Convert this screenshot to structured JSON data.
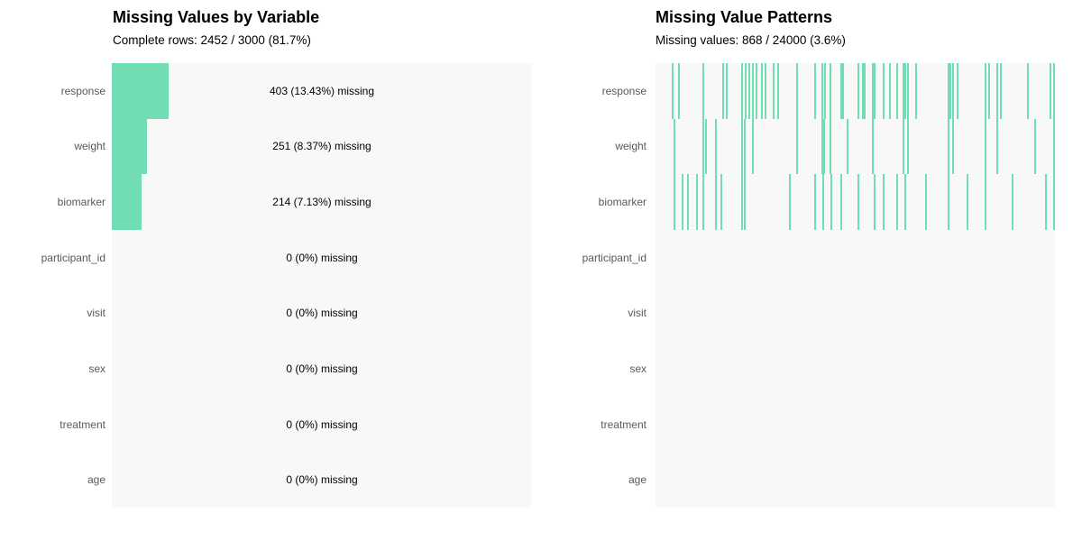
{
  "colors": {
    "accent": "#72dcb3",
    "panel_bg": "#f8f8f8",
    "label_text": "#595959",
    "title_text": "#000000"
  },
  "chart_data": [
    {
      "type": "bar",
      "orientation": "horizontal",
      "title": "Missing Values by Variable",
      "subtitle": "Complete rows: 2452 / 3000 (81.7%)",
      "complete_rows": 2452,
      "total_rows": 3000,
      "complete_pct": "81.7%",
      "xlim": [
        0,
        3000
      ],
      "grid": false,
      "categories": [
        "response",
        "weight",
        "biomarker",
        "participant_id",
        "visit",
        "sex",
        "treatment",
        "age"
      ],
      "values": [
        403,
        251,
        214,
        0,
        0,
        0,
        0,
        0
      ],
      "value_labels": [
        "403 (13.43%) missing",
        "251 (8.37%) missing",
        "214 (7.13%) missing",
        "0 (0%) missing",
        "0 (0%) missing",
        "0 (0%) missing",
        "0 (0%) missing",
        "0 (0%) missing"
      ]
    },
    {
      "type": "heatmap",
      "title": "Missing Value Patterns",
      "subtitle": "Missing values: 868 / 24000 (3.6%)",
      "missing_values": 868,
      "total_values": 24000,
      "missing_pct": "3.6%",
      "categories": [
        "response",
        "weight",
        "biomarker",
        "participant_id",
        "visit",
        "sex",
        "treatment",
        "age"
      ],
      "tick_positions": {
        "response": [
          0.043,
          0.059,
          0.12,
          0.169,
          0.178,
          0.217,
          0.226,
          0.235,
          0.244,
          0.253,
          0.266,
          0.275,
          0.296,
          0.307,
          0.354,
          0.4,
          0.418,
          0.424,
          0.438,
          0.465,
          0.47,
          0.508,
          0.519,
          0.524,
          0.544,
          0.549,
          0.571,
          0.587,
          0.605,
          0.621,
          0.625,
          0.632,
          0.652,
          0.734,
          0.738,
          0.745,
          0.756,
          0.826,
          0.835,
          0.856,
          0.864,
          0.932,
          0.989,
          0.998
        ],
        "weight": [
          0.047,
          0.12,
          0.126,
          0.151,
          0.217,
          0.224,
          0.244,
          0.354,
          0.418,
          0.422,
          0.438,
          0.481,
          0.544,
          0.621,
          0.632,
          0.734,
          0.745,
          0.826,
          0.856,
          0.95,
          0.998
        ],
        "biomarker": [
          0.047,
          0.068,
          0.081,
          0.104,
          0.12,
          0.151,
          0.165,
          0.217,
          0.224,
          0.336,
          0.4,
          0.42,
          0.44,
          0.465,
          0.508,
          0.549,
          0.571,
          0.605,
          0.625,
          0.677,
          0.734,
          0.781,
          0.826,
          0.894,
          0.977,
          0.998
        ],
        "participant_id": [],
        "visit": [],
        "sex": [],
        "treatment": [],
        "age": []
      }
    }
  ]
}
